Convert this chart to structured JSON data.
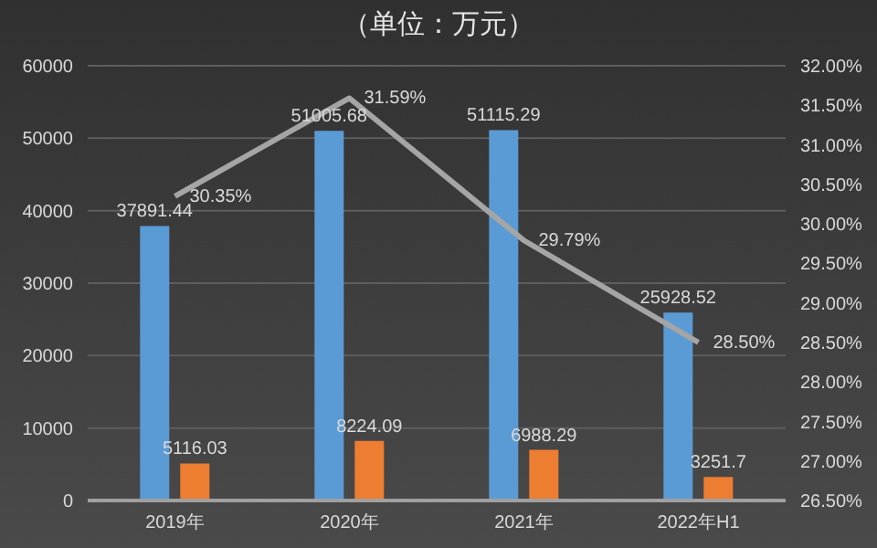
{
  "chart_data": {
    "type": "bar",
    "title": "（单位：万元）",
    "categories": [
      "2019年",
      "2020年",
      "2021年",
      "2022年H1"
    ],
    "series": [
      {
        "color": "#5b9bd5",
        "values": [
          37891.44,
          51005.68,
          51115.29,
          25928.52
        ],
        "value_labels": [
          "37891.44",
          "51005.68",
          "51115.29",
          "25928.52"
        ]
      },
      {
        "color": "#ed7d31",
        "values": [
          5116.03,
          8224.09,
          6988.29,
          3251.7
        ],
        "value_labels": [
          "5116.03",
          "8224.09",
          "6988.29",
          "3251.7"
        ]
      },
      {
        "type": "line",
        "axis": "y2",
        "color": "#a5a5a5",
        "values": [
          30.35,
          31.59,
          29.79,
          28.5
        ],
        "value_labels": [
          "30.35%",
          "31.59%",
          "29.79%",
          "28.50%"
        ]
      }
    ],
    "ylim": [
      0,
      60000
    ],
    "yticks": [
      0,
      10000,
      20000,
      30000,
      40000,
      50000,
      60000
    ],
    "y2lim": [
      26.5,
      32
    ],
    "y2ticks": [
      {
        "value": 26.5,
        "label": "26.50%"
      },
      {
        "value": 27,
        "label": "27.00%"
      },
      {
        "value": 27.5,
        "label": "27.50%"
      },
      {
        "value": 28,
        "label": "28.00%"
      },
      {
        "value": 28.5,
        "label": "28.50%"
      },
      {
        "value": 29,
        "label": "29.00%"
      },
      {
        "value": 29.5,
        "label": "29.50%"
      },
      {
        "value": 30,
        "label": "30.00%"
      },
      {
        "value": 30.5,
        "label": "30.50%"
      },
      {
        "value": 31,
        "label": "31.00%"
      },
      {
        "value": 31.5,
        "label": "31.50%"
      },
      {
        "value": 32,
        "label": "32.00%"
      }
    ],
    "grid": "y",
    "legend": false,
    "marker": "none",
    "line_style": "solid"
  }
}
